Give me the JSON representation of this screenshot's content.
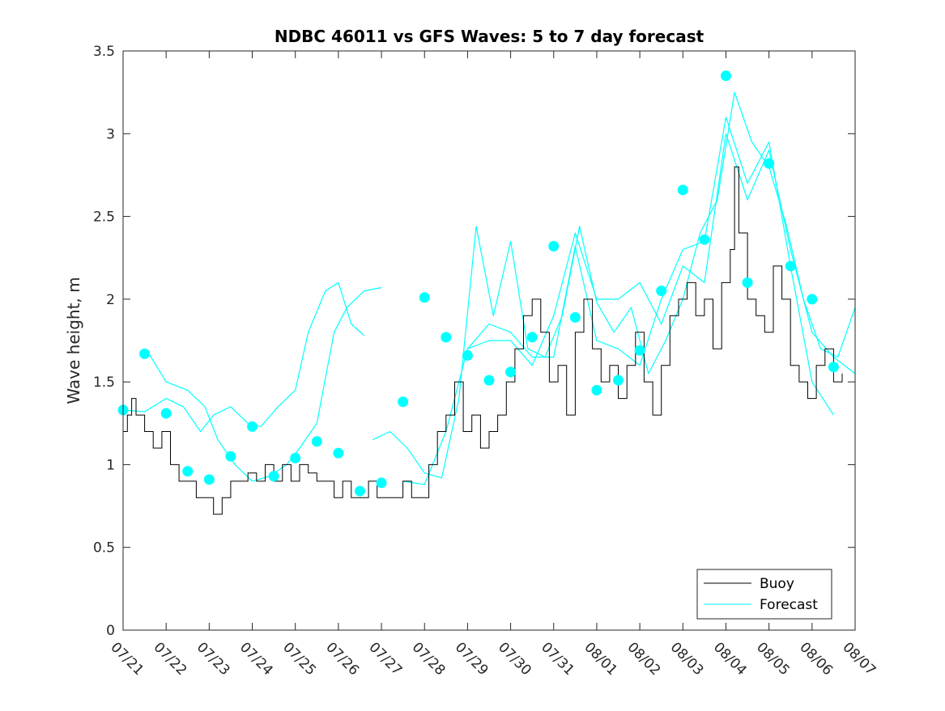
{
  "chart_data": {
    "type": "line",
    "title": "NDBC 46011 vs GFS Waves: 5 to 7 day forecast",
    "xlabel": "",
    "ylabel": "Wave height, m",
    "xlim": [
      "07/21",
      "08/07"
    ],
    "ylim": [
      0,
      3.5
    ],
    "x_ticks": [
      "07/21",
      "07/22",
      "07/23",
      "07/24",
      "07/25",
      "07/26",
      "07/27",
      "07/28",
      "07/29",
      "07/30",
      "07/31",
      "08/01",
      "08/02",
      "08/03",
      "08/04",
      "08/05",
      "08/06",
      "08/07"
    ],
    "y_ticks": [
      "0",
      "0.5",
      "1",
      "1.5",
      "2",
      "2.5",
      "3",
      "3.5"
    ],
    "grid": false,
    "legend_placement": "bottom-right",
    "legend": [
      "Buoy",
      "Forecast"
    ],
    "colors": {
      "buoy": "#000000",
      "forecast": "#00ffff"
    },
    "series": [
      {
        "name": "Buoy",
        "x_day": [
          0,
          0.1,
          0.2,
          0.3,
          0.5,
          0.7,
          0.9,
          1.1,
          1.3,
          1.5,
          1.7,
          1.9,
          2.1,
          2.3,
          2.5,
          2.7,
          2.9,
          3.1,
          3.3,
          3.5,
          3.7,
          3.9,
          4.1,
          4.3,
          4.5,
          4.7,
          4.9,
          5.1,
          5.3,
          5.5,
          5.7,
          5.9,
          6.1,
          6.3,
          6.5,
          6.7,
          6.9,
          7.1,
          7.3,
          7.5,
          7.7,
          7.9,
          8.1,
          8.3,
          8.5,
          8.7,
          8.9,
          9.1,
          9.3,
          9.5,
          9.7,
          9.9,
          10.1,
          10.3,
          10.5,
          10.7,
          10.9,
          11.1,
          11.3,
          11.5,
          11.7,
          11.9,
          12.1,
          12.3,
          12.5,
          12.7,
          12.9,
          13.1,
          13.3,
          13.5,
          13.7,
          13.9,
          14.1,
          14.2,
          14.3,
          14.5,
          14.7,
          14.9,
          15.1,
          15.3,
          15.5,
          15.7,
          15.9,
          16.1,
          16.3,
          16.5,
          16.7
        ],
        "y": [
          1.2,
          1.3,
          1.4,
          1.3,
          1.2,
          1.1,
          1.2,
          1.0,
          0.9,
          0.9,
          0.8,
          0.8,
          0.7,
          0.8,
          0.9,
          0.9,
          0.95,
          0.9,
          1.0,
          0.9,
          1.0,
          0.9,
          1.0,
          0.95,
          0.9,
          0.9,
          0.8,
          0.9,
          0.8,
          0.8,
          0.9,
          0.8,
          0.8,
          0.8,
          0.9,
          0.8,
          0.8,
          1.0,
          1.2,
          1.3,
          1.5,
          1.2,
          1.3,
          1.1,
          1.2,
          1.3,
          1.5,
          1.7,
          1.9,
          2.0,
          1.8,
          1.5,
          1.6,
          1.3,
          1.8,
          2.0,
          1.7,
          1.5,
          1.6,
          1.4,
          1.6,
          1.8,
          1.5,
          1.3,
          1.6,
          1.9,
          2.0,
          2.1,
          1.9,
          2.0,
          1.7,
          2.1,
          2.3,
          2.8,
          2.4,
          2.0,
          1.9,
          1.8,
          2.2,
          2.0,
          1.6,
          1.5,
          1.4,
          1.6,
          1.7,
          1.5,
          1.55
        ]
      },
      {
        "name": "Forecast",
        "runs": [
          {
            "x_day": [
              0.6,
              1.0,
              1.5,
              1.9,
              2.2,
              2.6,
              3.0,
              3.4,
              3.8,
              4.1,
              4.5,
              4.9,
              5.2,
              5.6,
              6.0
            ],
            "y": [
              1.67,
              1.5,
              1.45,
              1.35,
              1.15,
              1.0,
              0.9,
              0.93,
              1.0,
              1.1,
              1.25,
              1.8,
              1.95,
              2.05,
              2.07
            ]
          },
          {
            "x_day": [
              0.0,
              0.5,
              1.0,
              1.4,
              1.8,
              2.1,
              2.5,
              2.9,
              3.2,
              3.6,
              4.0,
              4.3,
              4.7,
              5.0,
              5.3,
              5.6
            ],
            "y": [
              1.33,
              1.32,
              1.4,
              1.35,
              1.2,
              1.3,
              1.35,
              1.25,
              1.23,
              1.35,
              1.45,
              1.8,
              2.05,
              2.1,
              1.85,
              1.78
            ]
          },
          {
            "x_day": [
              5.8,
              6.2,
              6.6,
              7.0,
              7.4,
              7.8,
              8.2,
              8.6,
              9.0,
              9.4,
              9.8,
              10.2,
              10.6,
              11.0,
              11.4,
              11.8,
              12.2,
              12.6,
              13.0,
              13.4,
              13.8,
              14.2,
              14.6,
              15.0,
              15.4,
              15.8,
              16.2,
              16.6,
              17.0
            ],
            "y": [
              1.15,
              1.2,
              1.1,
              0.95,
              0.92,
              1.4,
              2.44,
              1.9,
              2.35,
              1.7,
              1.65,
              1.9,
              2.44,
              1.98,
              1.8,
              1.95,
              1.55,
              1.75,
              2.0,
              2.4,
              2.6,
              3.25,
              2.95,
              2.8,
              2.45,
              2.0,
              1.7,
              1.65,
              1.95
            ]
          },
          {
            "x_day": [
              6.5,
              7.0,
              7.5,
              8.0,
              8.5,
              9.0,
              9.5,
              10.0,
              10.5,
              11.0,
              11.5,
              12.0,
              12.5,
              13.0,
              13.5,
              14.0,
              14.5,
              15.0,
              15.5,
              16.0,
              16.5
            ],
            "y": [
              0.9,
              0.88,
              1.2,
              1.7,
              1.85,
              1.8,
              1.65,
              1.65,
              2.32,
              1.75,
              1.7,
              1.6,
              2.0,
              2.3,
              2.35,
              3.1,
              2.7,
              2.95,
              2.2,
              1.5,
              1.3
            ]
          },
          {
            "x_day": [
              8.0,
              8.5,
              9.0,
              9.5,
              10.0,
              10.5,
              11.0,
              11.5,
              12.0,
              12.5,
              13.0,
              13.5,
              14.0,
              14.5,
              15.0,
              15.5,
              16.0,
              16.5,
              17.0
            ],
            "y": [
              1.7,
              1.75,
              1.75,
              1.6,
              1.9,
              2.4,
              2.0,
              2.0,
              2.1,
              1.85,
              2.2,
              2.1,
              3.0,
              2.6,
              2.9,
              2.3,
              1.8,
              1.65,
              1.55
            ]
          }
        ],
        "markers": {
          "x_day": [
            0.0,
            0.5,
            1.0,
            1.5,
            2.0,
            2.5,
            3.0,
            3.5,
            4.0,
            4.5,
            5.0,
            5.5,
            6.0,
            6.5,
            7.0,
            7.5,
            8.0,
            8.5,
            9.0,
            9.5,
            10.0,
            10.5,
            11.0,
            11.5,
            12.0,
            12.5,
            13.0,
            13.5,
            14.0,
            14.5,
            15.0,
            15.5,
            16.0,
            16.5
          ],
          "y": [
            1.33,
            1.67,
            1.31,
            0.96,
            0.91,
            1.05,
            1.23,
            0.93,
            1.04,
            1.14,
            1.07,
            0.84,
            0.89,
            1.38,
            2.01,
            1.77,
            1.66,
            1.51,
            1.56,
            1.77,
            2.32,
            1.89,
            1.45,
            1.51,
            1.69,
            2.05,
            2.66,
            2.36,
            3.35,
            2.1,
            2.82,
            2.2,
            2.0,
            1.59
          ]
        }
      }
    ]
  }
}
